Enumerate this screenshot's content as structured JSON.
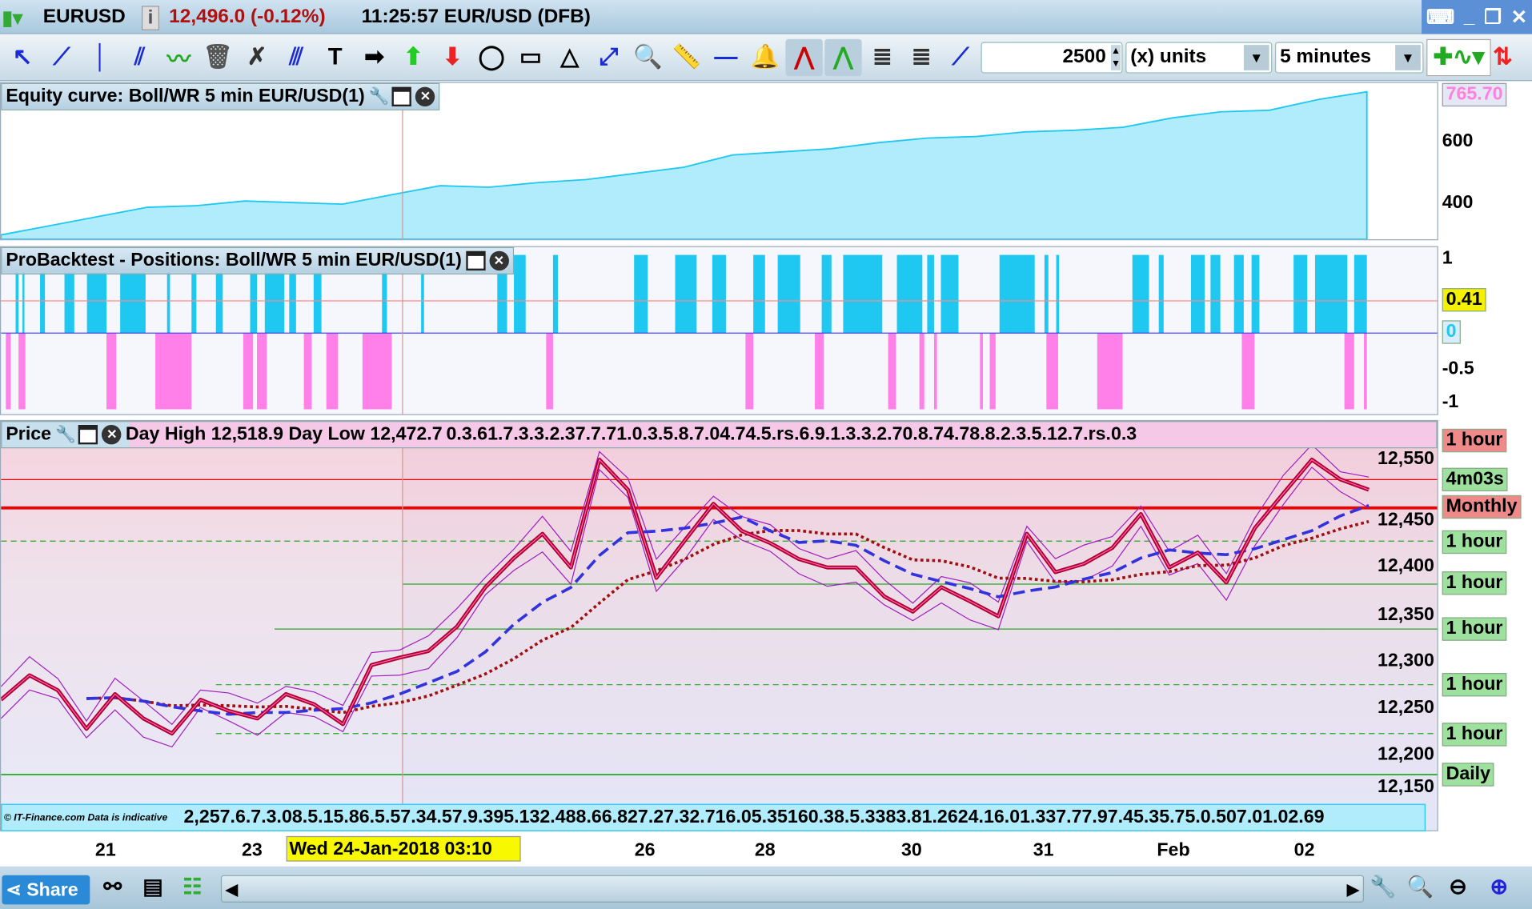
{
  "titlebar": {
    "symbol": "EURUSD",
    "price_change": "12,496.0 (-0.12%)",
    "time_instrument": "11:25:57 EUR/USD (DFB)",
    "info_icon": "info-icon"
  },
  "toolbar": {
    "quantity": "2500",
    "units": "(x) units",
    "timeframe": "5 minutes"
  },
  "equity": {
    "title": "Equity curve: Boll/WR 5 min EUR/USD(1)",
    "last_value": "765.70",
    "ticks": [
      "600",
      "400"
    ],
    "values": [
      300,
      330,
      360,
      390,
      395,
      410,
      405,
      400,
      430,
      460,
      455,
      470,
      480,
      500,
      520,
      560,
      570,
      580,
      600,
      615,
      620,
      635,
      640,
      650,
      680,
      700,
      705,
      740,
      765
    ]
  },
  "positions": {
    "title": "ProBacktest - Positions: Boll/WR 5 min EUR/USD(1)",
    "ticks": [
      "1",
      "-0.5",
      "-1"
    ],
    "current_value": "0.41",
    "zero_label": "0"
  },
  "price": {
    "title": "Price",
    "header_text": "Day High 12,518.9 Day Low 12,472.7",
    "ticks": [
      "12,550",
      "12,450",
      "12,400",
      "12,350",
      "12,300",
      "12,250",
      "12,200",
      "12,150"
    ],
    "tags": [
      {
        "label": "1 hour",
        "kind": "r"
      },
      {
        "label": "4m03s",
        "kind": "g"
      },
      {
        "label": "Monthly",
        "kind": "r"
      },
      {
        "label": "1 hour",
        "kind": "g"
      },
      {
        "label": "1 hour",
        "kind": "g"
      },
      {
        "label": "1 hour",
        "kind": "g"
      },
      {
        "label": "1 hour",
        "kind": "g"
      },
      {
        "label": "1 hour",
        "kind": "g"
      },
      {
        "label": "Daily",
        "kind": "g"
      }
    ],
    "values": [
      12260,
      12286,
      12270,
      12229,
      12266,
      12240,
      12224,
      12260,
      12248,
      12240,
      12266,
      12255,
      12234,
      12297,
      12305,
      12312,
      12338,
      12380,
      12411,
      12437,
      12401,
      12516,
      12484,
      12390,
      12430,
      12469,
      12440,
      12427,
      12410,
      12401,
      12401,
      12370,
      12354,
      12380,
      12365,
      12349,
      12437,
      12396,
      12405,
      12422,
      12458,
      12401,
      12417,
      12385,
      12443,
      12480,
      12516,
      12495,
      12484
    ],
    "top_strip": "0.3.61.7.3.3.2.37.7.71.0.3.5.8.7.04.74.5.rs.6.9.1.3.3.2.70.8.74.78.8.2.3.5.12.7.rs.0.3",
    "bottom_strip": "2,257.6.7.3.08.5.15.86.5.57.34.57.9.395.132.488.66.827.27.32.716.05.35160.38.5.3383.81.2624.16.01.337.77.97.45.35.75.0.507.01.02.69",
    "copyright": "© IT-Finance.com  Data is indicative"
  },
  "dates": {
    "labels": [
      "21",
      "23",
      "26",
      "28",
      "30",
      "31",
      "Feb",
      "02"
    ],
    "cursor": "Wed 24-Jan-2018 03:10"
  },
  "bottom": {
    "share": "Share"
  },
  "colors": {
    "long": "#1ec8f0",
    "short": "#ff80e8",
    "price": "#b0002a",
    "ma_fast": "#3333dd",
    "ma_slow": "#a01010",
    "equity_fill": "#b0ecfc"
  }
}
